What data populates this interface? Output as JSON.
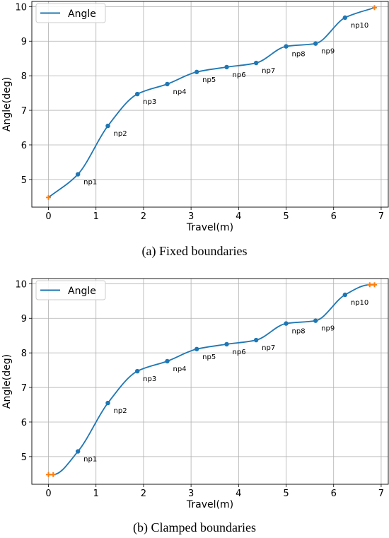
{
  "chart_data": [
    {
      "type": "line",
      "caption": "(a) Fixed boundaries",
      "xlabel": "Travel(m)",
      "ylabel": "Angle(deg)",
      "xlim": [
        -0.35,
        7.15
      ],
      "ylim": [
        4.2,
        10.15
      ],
      "xticks": [
        0,
        1,
        2,
        3,
        4,
        5,
        6,
        7
      ],
      "yticks": [
        5,
        6,
        7,
        8,
        9,
        10
      ],
      "grid": true,
      "legend_position": "top-left",
      "series": [
        {
          "name": "Angle",
          "color": "#1f77b4",
          "x": [
            0,
            0.62,
            1.25,
            1.87,
            2.5,
            3.12,
            3.75,
            4.37,
            5.0,
            5.62,
            6.24,
            6.86
          ],
          "y": [
            4.48,
            5.15,
            6.55,
            7.47,
            7.76,
            8.11,
            8.25,
            8.37,
            8.85,
            8.93,
            9.68,
            9.97
          ]
        }
      ],
      "points": [
        {
          "label": "np1",
          "x": 0.62,
          "y": 5.15
        },
        {
          "label": "np2",
          "x": 1.25,
          "y": 6.55
        },
        {
          "label": "np3",
          "x": 1.87,
          "y": 7.47
        },
        {
          "label": "np4",
          "x": 2.5,
          "y": 7.76
        },
        {
          "label": "np5",
          "x": 3.12,
          "y": 8.11
        },
        {
          "label": "np6",
          "x": 3.75,
          "y": 8.25
        },
        {
          "label": "np7",
          "x": 4.37,
          "y": 8.37
        },
        {
          "label": "np8",
          "x": 5.0,
          "y": 8.85
        },
        {
          "label": "np9",
          "x": 5.62,
          "y": 8.93
        },
        {
          "label": "np10",
          "x": 6.24,
          "y": 9.68
        }
      ],
      "boundary_markers": {
        "color": "#ff7f0e",
        "x": [
          0,
          6.86
        ],
        "y": [
          4.48,
          9.97
        ]
      }
    },
    {
      "type": "line",
      "caption": "(b) Clamped boundaries",
      "xlabel": "Travel(m)",
      "ylabel": "Angle(deg)",
      "xlim": [
        -0.35,
        7.15
      ],
      "ylim": [
        4.2,
        10.15
      ],
      "xticks": [
        0,
        1,
        2,
        3,
        4,
        5,
        6,
        7
      ],
      "yticks": [
        5,
        6,
        7,
        8,
        9,
        10
      ],
      "grid": true,
      "legend_position": "top-left",
      "series": [
        {
          "name": "Angle",
          "color": "#1f77b4",
          "x": [
            0,
            0.1,
            0.62,
            1.25,
            1.87,
            2.5,
            3.12,
            3.75,
            4.37,
            5.0,
            5.62,
            6.24,
            6.76,
            6.86
          ],
          "y": [
            4.48,
            4.48,
            5.15,
            6.55,
            7.47,
            7.76,
            8.11,
            8.25,
            8.37,
            8.85,
            8.93,
            9.68,
            9.97,
            9.97
          ]
        }
      ],
      "points": [
        {
          "label": "np1",
          "x": 0.62,
          "y": 5.15
        },
        {
          "label": "np2",
          "x": 1.25,
          "y": 6.55
        },
        {
          "label": "np3",
          "x": 1.87,
          "y": 7.47
        },
        {
          "label": "np4",
          "x": 2.5,
          "y": 7.76
        },
        {
          "label": "np5",
          "x": 3.12,
          "y": 8.11
        },
        {
          "label": "np6",
          "x": 3.75,
          "y": 8.25
        },
        {
          "label": "np7",
          "x": 4.37,
          "y": 8.37
        },
        {
          "label": "np8",
          "x": 5.0,
          "y": 8.85
        },
        {
          "label": "np9",
          "x": 5.62,
          "y": 8.93
        },
        {
          "label": "np10",
          "x": 6.24,
          "y": 9.68
        }
      ],
      "boundary_markers": {
        "color": "#ff7f0e",
        "x": [
          0,
          0.1,
          6.76,
          6.86
        ],
        "y": [
          4.48,
          4.48,
          9.97,
          9.97
        ]
      }
    }
  ]
}
